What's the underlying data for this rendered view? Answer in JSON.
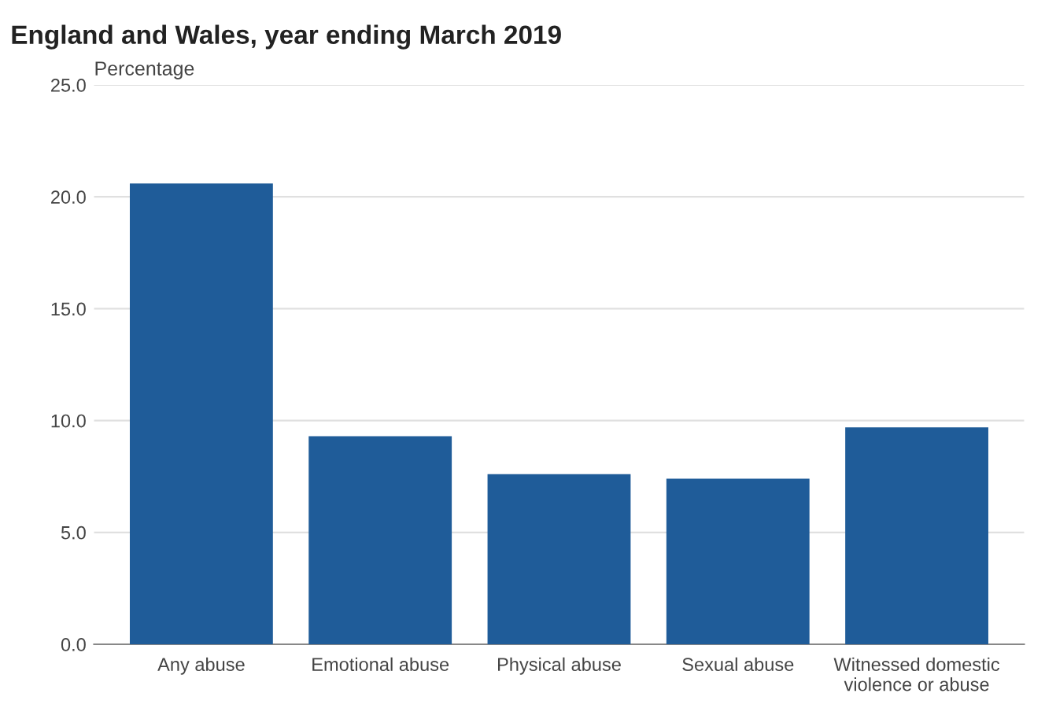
{
  "chart_data": {
    "type": "bar",
    "title": "England and Wales, year ending March 2019",
    "ylabel": "Percentage",
    "categories": [
      "Any abuse",
      "Emotional abuse",
      "Physical abuse",
      "Sexual abuse",
      "Witnessed domestic\nviolence or abuse"
    ],
    "values": [
      20.6,
      9.3,
      7.6,
      7.4,
      9.7
    ],
    "color": "#1f5c99",
    "ylim": [
      0,
      25
    ],
    "yticks": [
      {
        "value": 0,
        "label": "0.0"
      },
      {
        "value": 5,
        "label": "5.0"
      },
      {
        "value": 10,
        "label": "10.0"
      },
      {
        "value": 15,
        "label": "15.0"
      },
      {
        "value": 20,
        "label": "20.0"
      },
      {
        "value": 25,
        "label": "25.0"
      }
    ],
    "grid": "y"
  }
}
